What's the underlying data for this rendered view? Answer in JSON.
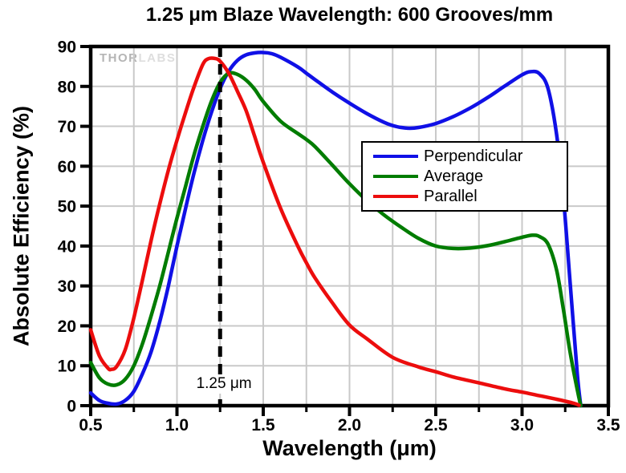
{
  "chart_data": {
    "type": "line",
    "title": "1.25 μm Blaze Wavelength: 600 Grooves/mm",
    "xlabel": "Wavelength (μm)",
    "ylabel": "Absolute Efficiency (%)",
    "xlim": [
      0.5,
      3.5
    ],
    "ylim": [
      0,
      90
    ],
    "x_tick_labels": [
      "0.5",
      "1.0",
      "1.5",
      "2.0",
      "2.5",
      "3.0",
      "3.5"
    ],
    "y_tick_labels": [
      "0",
      "10",
      "20",
      "30",
      "40",
      "50",
      "60",
      "70",
      "80",
      "90"
    ],
    "x_minor_tick_step": 0.25,
    "grid": {
      "x_step": 0.25,
      "y_step": 10,
      "color": "#c9c9c9",
      "on": true
    },
    "legend": {
      "position": "inside-right",
      "entries": [
        "Perpendicular",
        "Average",
        "Parallel"
      ]
    },
    "annotation": {
      "label": "1.25 μm",
      "x": 1.25,
      "style": "dashed-vertical-line"
    },
    "watermark": {
      "part1": "THOR",
      "part2": "LABS"
    },
    "frame_color": "#000000",
    "series": [
      {
        "name": "Perpendicular",
        "color": "#1010e6",
        "points": [
          [
            0.5,
            3.2
          ],
          [
            0.55,
            1.3
          ],
          [
            0.6,
            0.6
          ],
          [
            0.65,
            0.4
          ],
          [
            0.7,
            1.3
          ],
          [
            0.75,
            3.6
          ],
          [
            0.8,
            8.0
          ],
          [
            0.85,
            13.5
          ],
          [
            0.9,
            21.0
          ],
          [
            0.95,
            30.0
          ],
          [
            1.0,
            40.0
          ],
          [
            1.05,
            49.5
          ],
          [
            1.1,
            58.5
          ],
          [
            1.15,
            66.5
          ],
          [
            1.2,
            73.5
          ],
          [
            1.25,
            79.5
          ],
          [
            1.3,
            83.8
          ],
          [
            1.35,
            86.5
          ],
          [
            1.4,
            87.9
          ],
          [
            1.45,
            88.4
          ],
          [
            1.5,
            88.5
          ],
          [
            1.55,
            88.2
          ],
          [
            1.6,
            87.3
          ],
          [
            1.7,
            84.9
          ],
          [
            1.75,
            83.3
          ],
          [
            1.8,
            81.7
          ],
          [
            1.9,
            78.6
          ],
          [
            2.0,
            75.8
          ],
          [
            2.1,
            73.2
          ],
          [
            2.2,
            71.0
          ],
          [
            2.25,
            70.2
          ],
          [
            2.3,
            69.7
          ],
          [
            2.35,
            69.5
          ],
          [
            2.4,
            69.7
          ],
          [
            2.5,
            70.7
          ],
          [
            2.6,
            72.4
          ],
          [
            2.7,
            74.6
          ],
          [
            2.8,
            77.2
          ],
          [
            2.9,
            80.1
          ],
          [
            3.0,
            82.9
          ],
          [
            3.05,
            83.7
          ],
          [
            3.1,
            83.2
          ],
          [
            3.15,
            79.5
          ],
          [
            3.2,
            68.0
          ],
          [
            3.24,
            52.0
          ],
          [
            3.28,
            30.0
          ],
          [
            3.32,
            8.0
          ],
          [
            3.34,
            0.0
          ]
        ]
      },
      {
        "name": "Average",
        "color": "#007c00",
        "points": [
          [
            0.5,
            10.8
          ],
          [
            0.55,
            7.0
          ],
          [
            0.6,
            5.4
          ],
          [
            0.65,
            5.2
          ],
          [
            0.7,
            6.6
          ],
          [
            0.75,
            10.0
          ],
          [
            0.8,
            15.5
          ],
          [
            0.85,
            22.5
          ],
          [
            0.9,
            30.0
          ],
          [
            0.95,
            38.5
          ],
          [
            1.0,
            47.0
          ],
          [
            1.05,
            55.0
          ],
          [
            1.1,
            63.0
          ],
          [
            1.15,
            70.0
          ],
          [
            1.2,
            76.3
          ],
          [
            1.25,
            81.0
          ],
          [
            1.3,
            83.3
          ],
          [
            1.35,
            83.0
          ],
          [
            1.4,
            81.6
          ],
          [
            1.45,
            79.3
          ],
          [
            1.5,
            76.2
          ],
          [
            1.6,
            71.3
          ],
          [
            1.7,
            68.2
          ],
          [
            1.75,
            66.7
          ],
          [
            1.8,
            64.9
          ],
          [
            1.9,
            60.3
          ],
          [
            2.0,
            55.6
          ],
          [
            2.1,
            51.4
          ],
          [
            2.2,
            47.8
          ],
          [
            2.3,
            44.7
          ],
          [
            2.4,
            41.9
          ],
          [
            2.5,
            40.0
          ],
          [
            2.6,
            39.4
          ],
          [
            2.7,
            39.5
          ],
          [
            2.8,
            40.1
          ],
          [
            2.9,
            41.1
          ],
          [
            3.0,
            42.2
          ],
          [
            3.06,
            42.7
          ],
          [
            3.1,
            42.4
          ],
          [
            3.15,
            40.5
          ],
          [
            3.2,
            34.0
          ],
          [
            3.24,
            24.0
          ],
          [
            3.28,
            13.0
          ],
          [
            3.32,
            4.0
          ],
          [
            3.34,
            0.0
          ]
        ]
      },
      {
        "name": "Parallel",
        "color": "#ec0d0d",
        "points": [
          [
            0.5,
            19.0
          ],
          [
            0.55,
            12.5
          ],
          [
            0.6,
            9.4
          ],
          [
            0.62,
            9.1
          ],
          [
            0.65,
            9.8
          ],
          [
            0.7,
            14.0
          ],
          [
            0.75,
            22.0
          ],
          [
            0.8,
            31.5
          ],
          [
            0.85,
            41.4
          ],
          [
            0.9,
            50.5
          ],
          [
            0.95,
            59.0
          ],
          [
            1.0,
            66.5
          ],
          [
            1.05,
            73.5
          ],
          [
            1.1,
            80.0
          ],
          [
            1.15,
            85.5
          ],
          [
            1.18,
            86.9
          ],
          [
            1.22,
            87.0
          ],
          [
            1.25,
            86.3
          ],
          [
            1.3,
            83.3
          ],
          [
            1.35,
            78.8
          ],
          [
            1.4,
            74.0
          ],
          [
            1.45,
            67.5
          ],
          [
            1.5,
            61.0
          ],
          [
            1.6,
            49.5
          ],
          [
            1.7,
            40.0
          ],
          [
            1.75,
            35.8
          ],
          [
            1.8,
            32.0
          ],
          [
            1.9,
            25.8
          ],
          [
            2.0,
            20.2
          ],
          [
            2.1,
            16.8
          ],
          [
            2.25,
            12.1
          ],
          [
            2.4,
            9.7
          ],
          [
            2.5,
            8.5
          ],
          [
            2.6,
            7.2
          ],
          [
            2.75,
            5.7
          ],
          [
            2.9,
            4.2
          ],
          [
            3.0,
            3.4
          ],
          [
            3.1,
            2.5
          ],
          [
            3.2,
            1.6
          ],
          [
            3.3,
            0.6
          ],
          [
            3.33,
            0.1
          ]
        ]
      }
    ]
  }
}
